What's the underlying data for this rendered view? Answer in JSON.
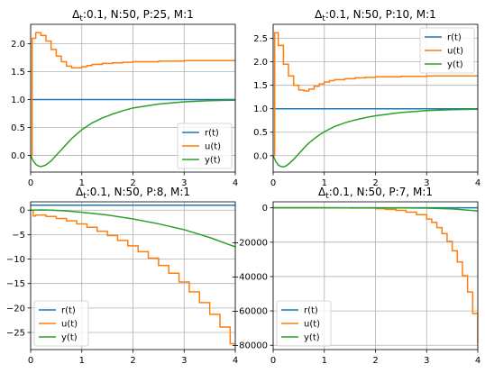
{
  "colors": {
    "r": "#1f77b4",
    "u": "#ff7f0e",
    "y": "#2ca02c",
    "grid": "#b0b0b0"
  },
  "legend_labels": [
    "r(t)",
    "u(t)",
    "y(t)"
  ],
  "chart_data": [
    {
      "type": "line",
      "title": "Δ_t:0.1, N:50, P:25, M:1",
      "title_parts": {
        "sym": "Δ",
        "sub": "t",
        "rest": ":0.1, N:50, P:25, M:1"
      },
      "xlim": [
        0,
        4
      ],
      "ylim": [
        -0.3,
        2.35
      ],
      "xticks": [
        0,
        1,
        2,
        3,
        4
      ],
      "xtick_labels": [
        "0",
        "1",
        "2",
        "3",
        "4"
      ],
      "yticks": [
        0.0,
        0.5,
        1.0,
        1.5,
        2.0
      ],
      "ytick_labels": [
        "0.0",
        "0.5",
        "1.0",
        "1.5",
        "2.0"
      ],
      "grid": true,
      "legend_position": "lower-right",
      "series": [
        {
          "name": "r(t)",
          "key": "r",
          "step": false,
          "x": [
            0.03,
            4.0
          ],
          "y": [
            1.0,
            1.0
          ]
        },
        {
          "name": "u(t)",
          "key": "u",
          "step": true,
          "x": [
            0.0,
            0.03,
            0.1,
            0.2,
            0.3,
            0.4,
            0.5,
            0.6,
            0.7,
            0.8,
            0.9,
            1.0,
            1.1,
            1.2,
            1.4,
            1.6,
            1.8,
            2.0,
            2.5,
            3.0,
            3.5,
            4.0
          ],
          "y": [
            0.0,
            2.1,
            2.2,
            2.15,
            2.05,
            1.9,
            1.78,
            1.68,
            1.6,
            1.57,
            1.57,
            1.59,
            1.61,
            1.63,
            1.65,
            1.66,
            1.67,
            1.68,
            1.69,
            1.7,
            1.7,
            1.71
          ]
        },
        {
          "name": "y(t)",
          "key": "y",
          "step": false,
          "x": [
            0.0,
            0.05,
            0.1,
            0.15,
            0.2,
            0.25,
            0.3,
            0.4,
            0.5,
            0.6,
            0.7,
            0.8,
            0.9,
            1.0,
            1.2,
            1.4,
            1.6,
            1.8,
            2.0,
            2.5,
            3.0,
            3.5,
            4.0
          ],
          "y": [
            0.0,
            -0.1,
            -0.16,
            -0.19,
            -0.2,
            -0.19,
            -0.17,
            -0.1,
            0.0,
            0.1,
            0.2,
            0.3,
            0.38,
            0.46,
            0.58,
            0.67,
            0.74,
            0.8,
            0.85,
            0.92,
            0.96,
            0.98,
            0.99
          ]
        }
      ]
    },
    {
      "type": "line",
      "title": "Δ_t:0.1, N:50, P:10, M:1",
      "title_parts": {
        "sym": "Δ",
        "sub": "t",
        "rest": ":0.1, N:50, P:10, M:1"
      },
      "xlim": [
        0,
        4
      ],
      "ylim": [
        -0.35,
        2.8
      ],
      "xticks": [
        0,
        1,
        2,
        3,
        4
      ],
      "xtick_labels": [
        "0",
        "1",
        "2",
        "3",
        "4"
      ],
      "yticks": [
        0.0,
        0.5,
        1.0,
        1.5,
        2.0,
        2.5
      ],
      "ytick_labels": [
        "0.0",
        "0.5",
        "1.0",
        "1.5",
        "2.0",
        "2.5"
      ],
      "grid": true,
      "legend_position": "upper-right",
      "series": [
        {
          "name": "r(t)",
          "key": "r",
          "step": false,
          "x": [
            0.03,
            4.0
          ],
          "y": [
            1.0,
            1.0
          ]
        },
        {
          "name": "u(t)",
          "key": "u",
          "step": true,
          "x": [
            0.0,
            0.03,
            0.1,
            0.2,
            0.3,
            0.4,
            0.5,
            0.6,
            0.7,
            0.8,
            0.9,
            1.0,
            1.1,
            1.2,
            1.4,
            1.6,
            1.8,
            2.0,
            2.5,
            3.0,
            3.5,
            4.0
          ],
          "y": [
            0.0,
            2.62,
            2.35,
            1.95,
            1.7,
            1.5,
            1.4,
            1.38,
            1.42,
            1.48,
            1.53,
            1.57,
            1.6,
            1.62,
            1.64,
            1.66,
            1.67,
            1.68,
            1.69,
            1.7,
            1.7,
            1.71
          ]
        },
        {
          "name": "y(t)",
          "key": "y",
          "step": false,
          "x": [
            0.0,
            0.05,
            0.1,
            0.15,
            0.2,
            0.25,
            0.3,
            0.4,
            0.5,
            0.6,
            0.7,
            0.8,
            0.9,
            1.0,
            1.2,
            1.4,
            1.6,
            1.8,
            2.0,
            2.5,
            3.0,
            3.5,
            4.0
          ],
          "y": [
            0.0,
            -0.12,
            -0.2,
            -0.23,
            -0.24,
            -0.22,
            -0.18,
            -0.08,
            0.04,
            0.16,
            0.27,
            0.36,
            0.44,
            0.51,
            0.62,
            0.7,
            0.76,
            0.81,
            0.85,
            0.92,
            0.96,
            0.98,
            0.99
          ]
        }
      ]
    },
    {
      "type": "line",
      "title": "Δ_t:0.1, N:50, P:8, M:1",
      "title_parts": {
        "sym": "Δ",
        "sub": "t",
        "rest": ":0.1, N:50, P:8, M:1"
      },
      "xlim": [
        0,
        4
      ],
      "ylim": [
        -28.5,
        1.7
      ],
      "xticks": [
        0,
        1,
        2,
        3,
        4
      ],
      "xtick_labels": [
        "0",
        "1",
        "2",
        "3",
        "4"
      ],
      "yticks": [
        0,
        -5,
        -10,
        -15,
        -20,
        -25
      ],
      "ytick_labels": [
        "0",
        "−5",
        "−10",
        "−15",
        "−20",
        "−25"
      ],
      "grid": true,
      "legend_position": "lower-left",
      "series": [
        {
          "name": "r(t)",
          "key": "r",
          "step": false,
          "x": [
            0.0,
            4.0
          ],
          "y": [
            1.0,
            1.0
          ]
        },
        {
          "name": "u(t)",
          "key": "u",
          "step": true,
          "x": [
            0.0,
            0.05,
            0.1,
            0.3,
            0.5,
            0.7,
            0.9,
            1.1,
            1.3,
            1.5,
            1.7,
            1.9,
            2.1,
            2.3,
            2.5,
            2.7,
            2.9,
            3.1,
            3.3,
            3.5,
            3.7,
            3.9,
            4.0
          ],
          "y": [
            0.0,
            -1.2,
            -1.0,
            -1.3,
            -1.7,
            -2.2,
            -2.8,
            -3.5,
            -4.3,
            -5.2,
            -6.2,
            -7.3,
            -8.5,
            -9.8,
            -11.3,
            -12.9,
            -14.7,
            -16.7,
            -18.9,
            -21.3,
            -23.9,
            -27.3,
            -27.3
          ]
        },
        {
          "name": "y(t)",
          "key": "y",
          "step": false,
          "x": [
            0.0,
            0.2,
            0.4,
            0.6,
            0.8,
            1.0,
            1.5,
            2.0,
            2.5,
            3.0,
            3.5,
            4.0
          ],
          "y": [
            0.0,
            0.05,
            0.0,
            -0.1,
            -0.25,
            -0.45,
            -1.0,
            -1.8,
            -2.8,
            -4.0,
            -5.6,
            -7.5
          ]
        }
      ]
    },
    {
      "type": "line",
      "title": "Δ_t:0.1, N:50, P:7, M:1",
      "title_parts": {
        "sym": "Δ",
        "sub": "t",
        "rest": ":0.1, N:50, P:7, M:1"
      },
      "xlim": [
        0,
        4
      ],
      "ylim": [
        -82500,
        3500
      ],
      "xticks": [
        0,
        1,
        2,
        3,
        4
      ],
      "xtick_labels": [
        "0",
        "1",
        "2",
        "3",
        "4"
      ],
      "yticks": [
        0,
        -20000,
        -40000,
        -60000,
        -80000
      ],
      "ytick_labels": [
        "0",
        "−20000",
        "−40000",
        "−60000",
        "−80000"
      ],
      "grid": true,
      "legend_position": "lower-left",
      "series": [
        {
          "name": "r(t)",
          "key": "r",
          "step": false,
          "x": [
            0.0,
            4.0
          ],
          "y": [
            1.0,
            1.0
          ]
        },
        {
          "name": "u(t)",
          "key": "u",
          "step": true,
          "x": [
            0.0,
            1.0,
            1.5,
            2.0,
            2.2,
            2.4,
            2.6,
            2.8,
            3.0,
            3.1,
            3.2,
            3.3,
            3.4,
            3.5,
            3.6,
            3.7,
            3.8,
            3.9,
            4.0
          ],
          "y": [
            0.0,
            -20,
            -120,
            -500,
            -900,
            -1500,
            -2500,
            -4000,
            -6500,
            -8500,
            -11500,
            -15000,
            -19500,
            -25000,
            -31500,
            -39500,
            -49000,
            -61500,
            -79000
          ]
        },
        {
          "name": "y(t)",
          "key": "y",
          "step": false,
          "x": [
            0.0,
            1.0,
            2.0,
            2.5,
            3.0,
            3.5,
            4.0
          ],
          "y": [
            0.0,
            -2,
            -20,
            -60,
            -180,
            -600,
            -1800
          ]
        }
      ]
    }
  ]
}
